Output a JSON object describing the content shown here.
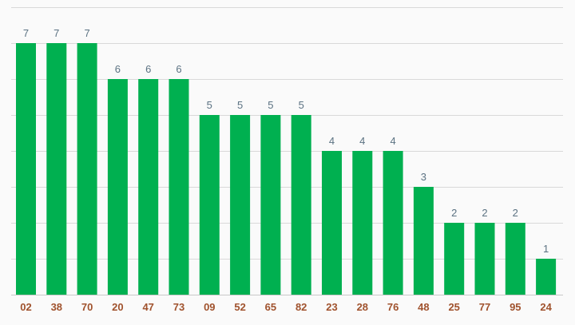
{
  "chart_data": {
    "type": "bar",
    "categories": [
      "02",
      "38",
      "70",
      "20",
      "47",
      "73",
      "09",
      "52",
      "65",
      "82",
      "23",
      "28",
      "76",
      "48",
      "25",
      "77",
      "95",
      "24"
    ],
    "values": [
      7,
      7,
      7,
      6,
      6,
      6,
      5,
      5,
      5,
      5,
      4,
      4,
      4,
      3,
      2,
      2,
      2,
      1
    ],
    "ylim": [
      0,
      8
    ],
    "grid": true,
    "legend": "none",
    "title": "",
    "xlabel": "",
    "ylabel": ""
  },
  "colors": {
    "bar": "#00b050",
    "value_label": "#5b7282",
    "category_label": "#a0522d",
    "background": "#fafafa",
    "grid": "#d9d9d9"
  }
}
